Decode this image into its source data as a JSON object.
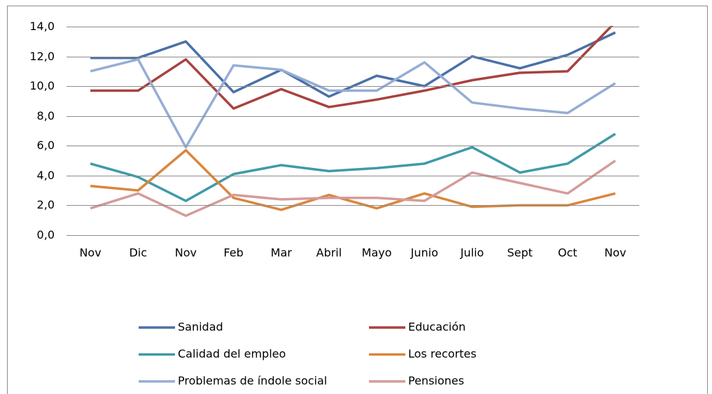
{
  "chart_data": {
    "type": "line",
    "categories": [
      "Nov",
      "Dic",
      "Nov",
      "Feb",
      "Mar",
      "Abril",
      "Mayo",
      "Junio",
      "Julio",
      "Sept",
      "Oct",
      "Nov"
    ],
    "series": [
      {
        "name": "Sanidad",
        "color": "#4a70a8",
        "values": [
          11.9,
          11.9,
          13.0,
          9.6,
          11.1,
          9.3,
          10.7,
          10.0,
          12.0,
          11.2,
          12.1,
          13.6
        ]
      },
      {
        "name": "Educación",
        "color": "#a8423f",
        "values": [
          9.7,
          9.7,
          11.8,
          8.5,
          9.8,
          8.6,
          9.1,
          9.7,
          10.4,
          10.9,
          11.0,
          14.3
        ]
      },
      {
        "name": "Calidad del empleo",
        "color": "#3f9aa8",
        "values": [
          4.8,
          3.9,
          2.3,
          4.1,
          4.7,
          4.3,
          4.5,
          4.8,
          5.9,
          4.2,
          4.8,
          6.8
        ]
      },
      {
        "name": "Los recortes",
        "color": "#d9863c",
        "values": [
          3.3,
          3.0,
          5.7,
          2.5,
          1.7,
          2.7,
          1.8,
          2.8,
          1.9,
          2.0,
          2.0,
          2.8
        ]
      },
      {
        "name": "Problemas de índole social",
        "color": "#95add5",
        "values": [
          11.0,
          11.8,
          5.9,
          11.4,
          11.1,
          9.7,
          9.7,
          11.6,
          8.9,
          8.5,
          8.2,
          10.2
        ]
      },
      {
        "name": "Pensiones",
        "color": "#d59b9b",
        "values": [
          1.8,
          2.8,
          1.3,
          2.7,
          2.4,
          2.5,
          2.5,
          2.3,
          4.2,
          3.5,
          2.8,
          5.0
        ]
      }
    ],
    "ylim": [
      0,
      14
    ],
    "yticks": [
      {
        "value": 0,
        "label": "0,0"
      },
      {
        "value": 2,
        "label": "2,0"
      },
      {
        "value": 4,
        "label": "4,0"
      },
      {
        "value": 6,
        "label": "6,0"
      },
      {
        "value": 8,
        "label": "8,0"
      },
      {
        "value": 10,
        "label": "10,0"
      },
      {
        "value": 12,
        "label": "12,0"
      },
      {
        "value": 14,
        "label": "14,0"
      }
    ],
    "grid": true,
    "legend": "bottom"
  }
}
